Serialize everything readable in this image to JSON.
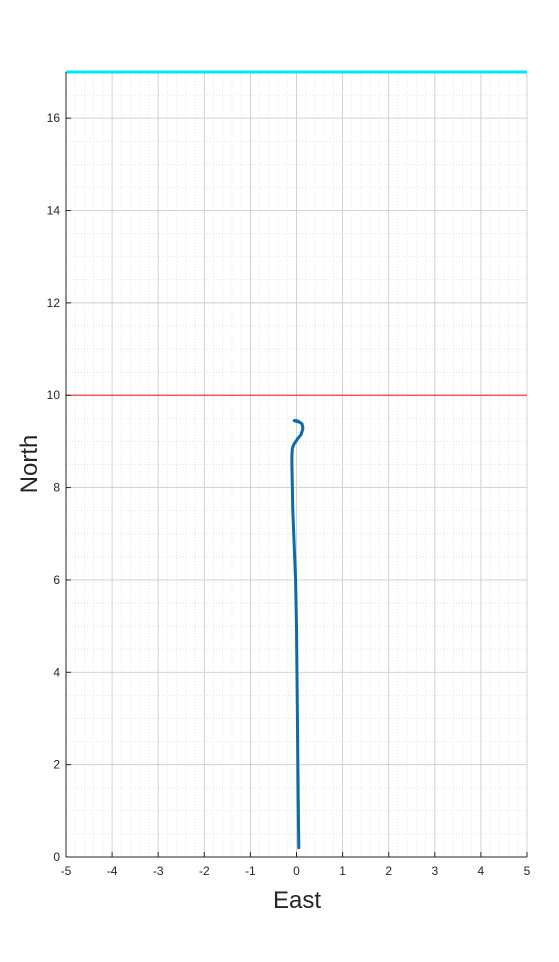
{
  "chart_data": {
    "type": "line",
    "xlabel": "East",
    "ylabel": "North",
    "xlim": [
      -5,
      5
    ],
    "ylim": [
      0,
      17
    ],
    "xticks": [
      -5,
      -4,
      -3,
      -2,
      -1,
      0,
      1,
      2,
      3,
      4,
      5
    ],
    "yticks": [
      0,
      2,
      4,
      6,
      8,
      10,
      12,
      14,
      16
    ],
    "grid": "major and minor",
    "reference_lines": [
      {
        "y": 10,
        "color": "#ff3b3b"
      },
      {
        "y": 17,
        "color": "#00e5ff"
      }
    ],
    "series": [
      {
        "color": "#0d6aa6",
        "x": [
          0.05,
          0.04,
          0.03,
          0.02,
          0.01,
          0.0,
          -0.02,
          -0.04,
          -0.06,
          -0.08,
          -0.09,
          -0.1,
          -0.1,
          -0.09,
          -0.05,
          0.02,
          0.1,
          0.14,
          0.12,
          0.05,
          0.0,
          -0.05,
          0.05
        ],
        "y": [
          0.2,
          1.0,
          2.0,
          3.0,
          4.0,
          5.0,
          6.0,
          6.5,
          7.0,
          7.5,
          8.0,
          8.5,
          8.7,
          8.85,
          8.95,
          9.05,
          9.15,
          9.28,
          9.38,
          9.43,
          9.45,
          9.45,
          9.42
        ]
      }
    ]
  }
}
